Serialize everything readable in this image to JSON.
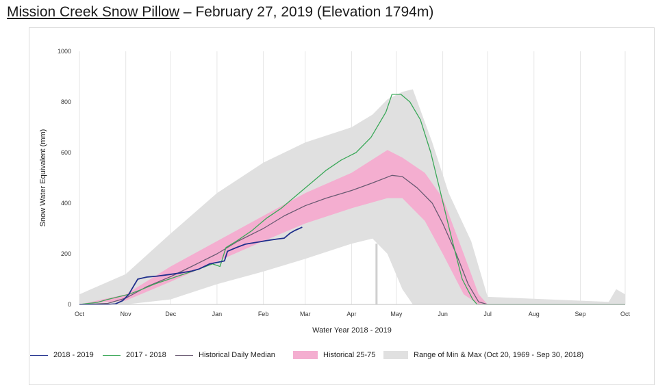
{
  "title": {
    "station": "Mission Creek Snow Pillow",
    "rest": " – February 27, 2019 (Elevation 1794m)"
  },
  "colors": {
    "current": "#1f2f8c",
    "previous": "#3aa858",
    "median": "#6a5a72",
    "band25_75": "#f4aed0",
    "minmax": "#e0e0e0"
  },
  "chart_data": {
    "type": "line",
    "xlabel": "Water Year 2018 - 2019",
    "ylabel": "Snow Water Equivalent (mm)",
    "ylim": [
      0,
      1000
    ],
    "yticks": [
      0,
      200,
      400,
      600,
      800,
      1000
    ],
    "xlim": [
      "2018-10-01",
      "2019-10-01"
    ],
    "xticks": [
      {
        "date": "2018-10-01",
        "label": "Oct"
      },
      {
        "date": "2018-11-01",
        "label": "Nov"
      },
      {
        "date": "2018-12-01",
        "label": "Dec"
      },
      {
        "date": "2019-01-01",
        "label": "Jan"
      },
      {
        "date": "2019-02-01",
        "label": "Feb"
      },
      {
        "date": "2019-03-01",
        "label": "Mar"
      },
      {
        "date": "2019-04-01",
        "label": "Apr"
      },
      {
        "date": "2019-05-01",
        "label": "May"
      },
      {
        "date": "2019-06-01",
        "label": "Jun"
      },
      {
        "date": "2019-07-01",
        "label": "Jul"
      },
      {
        "date": "2019-08-01",
        "label": "Aug"
      },
      {
        "date": "2019-09-01",
        "label": "Sep"
      },
      {
        "date": "2019-10-01",
        "label": "Oct"
      }
    ],
    "grid": "vertical",
    "legend_position": "bottom",
    "series": [
      {
        "name": "2018 - 2019",
        "kind": "line",
        "color": "#1f2f8c",
        "points": [
          [
            "2018-10-01",
            0
          ],
          [
            "2018-10-20",
            0
          ],
          [
            "2018-10-25",
            2
          ],
          [
            "2018-10-30",
            15
          ],
          [
            "2018-11-03",
            40
          ],
          [
            "2018-11-06",
            70
          ],
          [
            "2018-11-09",
            100
          ],
          [
            "2018-11-15",
            108
          ],
          [
            "2018-11-22",
            112
          ],
          [
            "2018-11-30",
            118
          ],
          [
            "2018-12-08",
            125
          ],
          [
            "2018-12-15",
            132
          ],
          [
            "2018-12-20",
            140
          ],
          [
            "2018-12-27",
            160
          ],
          [
            "2019-01-03",
            168
          ],
          [
            "2019-01-06",
            172
          ],
          [
            "2019-01-08",
            210
          ],
          [
            "2019-01-14",
            225
          ],
          [
            "2019-01-20",
            238
          ],
          [
            "2019-01-27",
            245
          ],
          [
            "2019-02-03",
            252
          ],
          [
            "2019-02-10",
            258
          ],
          [
            "2019-02-15",
            262
          ],
          [
            "2019-02-19",
            282
          ],
          [
            "2019-02-22",
            292
          ],
          [
            "2019-02-27",
            305
          ]
        ]
      },
      {
        "name": "2017 - 2018",
        "kind": "line",
        "color": "#3aa858",
        "points": [
          [
            "2018-10-01",
            0
          ],
          [
            "2018-10-13",
            8
          ],
          [
            "2018-10-20",
            20
          ],
          [
            "2018-10-27",
            30
          ],
          [
            "2018-11-03",
            40
          ],
          [
            "2018-11-12",
            60
          ],
          [
            "2018-11-20",
            80
          ],
          [
            "2018-11-30",
            100
          ],
          [
            "2018-12-10",
            120
          ],
          [
            "2018-12-20",
            140
          ],
          [
            "2018-12-29",
            160
          ],
          [
            "2019-01-03",
            150
          ],
          [
            "2019-01-07",
            225
          ],
          [
            "2019-01-14",
            250
          ],
          [
            "2019-01-24",
            290
          ],
          [
            "2019-02-03",
            340
          ],
          [
            "2019-02-13",
            380
          ],
          [
            "2019-02-23",
            430
          ],
          [
            "2019-03-05",
            480
          ],
          [
            "2019-03-15",
            530
          ],
          [
            "2019-03-25",
            570
          ],
          [
            "2019-04-04",
            600
          ],
          [
            "2019-04-14",
            660
          ],
          [
            "2019-04-24",
            760
          ],
          [
            "2019-04-28",
            830
          ],
          [
            "2019-05-04",
            830
          ],
          [
            "2019-05-10",
            800
          ],
          [
            "2019-05-17",
            730
          ],
          [
            "2019-05-24",
            600
          ],
          [
            "2019-05-31",
            430
          ],
          [
            "2019-06-07",
            260
          ],
          [
            "2019-06-14",
            100
          ],
          [
            "2019-06-21",
            20
          ],
          [
            "2019-06-24",
            0
          ],
          [
            "2019-10-01",
            0
          ]
        ]
      },
      {
        "name": "Historical Daily Median",
        "kind": "line",
        "color": "#6a5a72",
        "points": [
          [
            "2018-10-01",
            0
          ],
          [
            "2018-10-20",
            4
          ],
          [
            "2018-11-01",
            25
          ],
          [
            "2018-11-15",
            70
          ],
          [
            "2018-12-01",
            110
          ],
          [
            "2018-12-15",
            150
          ],
          [
            "2019-01-01",
            200
          ],
          [
            "2019-01-15",
            250
          ],
          [
            "2019-02-01",
            300
          ],
          [
            "2019-02-15",
            350
          ],
          [
            "2019-03-01",
            390
          ],
          [
            "2019-03-15",
            420
          ],
          [
            "2019-04-01",
            450
          ],
          [
            "2019-04-15",
            480
          ],
          [
            "2019-04-28",
            510
          ],
          [
            "2019-05-05",
            505
          ],
          [
            "2019-05-15",
            460
          ],
          [
            "2019-05-25",
            400
          ],
          [
            "2019-06-01",
            320
          ],
          [
            "2019-06-10",
            200
          ],
          [
            "2019-06-18",
            80
          ],
          [
            "2019-06-25",
            10
          ],
          [
            "2019-07-01",
            0
          ],
          [
            "2019-10-01",
            0
          ]
        ]
      },
      {
        "name": "Historical 25-75",
        "kind": "band",
        "color": "#f4aed0",
        "points": [
          [
            "2018-10-01",
            0,
            0
          ],
          [
            "2018-11-01",
            15,
            40
          ],
          [
            "2018-12-01",
            90,
            150
          ],
          [
            "2019-01-01",
            170,
            250
          ],
          [
            "2019-02-01",
            250,
            350
          ],
          [
            "2019-03-01",
            320,
            440
          ],
          [
            "2019-04-01",
            380,
            520
          ],
          [
            "2019-04-25",
            420,
            610
          ],
          [
            "2019-05-05",
            420,
            580
          ],
          [
            "2019-05-20",
            330,
            520
          ],
          [
            "2019-06-01",
            200,
            420
          ],
          [
            "2019-06-15",
            40,
            200
          ],
          [
            "2019-06-25",
            0,
            40
          ],
          [
            "2019-07-01",
            0,
            0
          ],
          [
            "2019-10-01",
            0,
            0
          ]
        ]
      },
      {
        "name": "Range of Min & Max (Oct 20, 1969 - Sep 30, 2018)",
        "kind": "band",
        "color": "#e0e0e0",
        "points": [
          [
            "2018-10-01",
            0,
            40
          ],
          [
            "2018-11-01",
            0,
            120
          ],
          [
            "2018-12-01",
            20,
            280
          ],
          [
            "2019-01-01",
            80,
            440
          ],
          [
            "2019-02-01",
            130,
            560
          ],
          [
            "2019-03-01",
            180,
            640
          ],
          [
            "2019-04-01",
            240,
            700
          ],
          [
            "2019-04-15",
            260,
            750
          ],
          [
            "2019-04-25",
            200,
            810
          ],
          [
            "2019-05-05",
            60,
            840
          ],
          [
            "2019-05-12",
            0,
            850
          ],
          [
            "2019-05-25",
            0,
            640
          ],
          [
            "2019-06-05",
            0,
            440
          ],
          [
            "2019-06-20",
            0,
            250
          ],
          [
            "2019-07-01",
            0,
            30
          ],
          [
            "2019-09-20",
            0,
            10
          ],
          [
            "2019-09-25",
            0,
            60
          ],
          [
            "2019-10-01",
            0,
            40
          ]
        ]
      }
    ]
  },
  "legend": [
    {
      "label": "2018 - 2019"
    },
    {
      "label": "2017 - 2018"
    },
    {
      "label": "Historical Daily Median"
    },
    {
      "label": "Historical 25-75"
    },
    {
      "label": "Range of Min & Max (Oct 20, 1969 - Sep 30, 2018)"
    }
  ]
}
